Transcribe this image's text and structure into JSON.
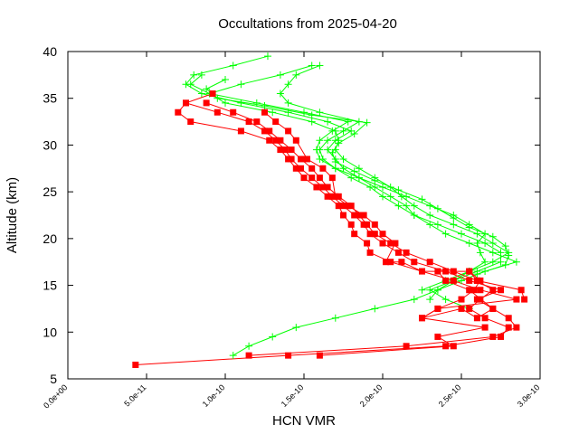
{
  "chart_data": {
    "type": "line",
    "title": "Occultations from 2025-04-20",
    "xlabel": "HCN VMR",
    "ylabel": "Altitude (km)",
    "xlim": [
      0,
      3e-10
    ],
    "ylim": [
      5,
      40
    ],
    "x_ticks": [
      "0.0e+00",
      "5.0e-11",
      "1.0e-10",
      "1.5e-10",
      "2.0e-10",
      "2.5e-10",
      "3.0e-10"
    ],
    "y_ticks": [
      "5",
      "10",
      "15",
      "20",
      "25",
      "30",
      "35",
      "40"
    ],
    "grid": false,
    "series": [
      {
        "color": "#00ff00",
        "marker": "plus",
        "points": [
          [
            1.27e-10,
            39.5
          ],
          [
            1.05e-10,
            38.5
          ],
          [
            8e-11,
            37.5
          ],
          [
            7.5e-11,
            36.5
          ],
          [
            8.5e-11,
            35.5
          ],
          [
            1.1e-10,
            34.5
          ],
          [
            1.4e-10,
            33.5
          ],
          [
            1.65e-10,
            32.5
          ],
          [
            1.8e-10,
            31.5
          ],
          [
            1.7e-10,
            30.5
          ],
          [
            1.65e-10,
            29.5
          ],
          [
            1.7e-10,
            28.5
          ],
          [
            1.75e-10,
            27.5
          ],
          [
            1.85e-10,
            26.5
          ],
          [
            1.95e-10,
            25.5
          ],
          [
            2.05e-10,
            24.5
          ],
          [
            2.15e-10,
            23.5
          ],
          [
            2.2e-10,
            22.5
          ],
          [
            2.3e-10,
            21.5
          ],
          [
            2.4e-10,
            20.5
          ],
          [
            2.55e-10,
            19.5
          ],
          [
            2.7e-10,
            18.5
          ],
          [
            2.85e-10,
            17.5
          ],
          [
            2.65e-10,
            16.5
          ],
          [
            2.5e-10,
            15.5
          ],
          [
            2.35e-10,
            14.5
          ],
          [
            2.2e-10,
            13.5
          ],
          [
            1.95e-10,
            12.5
          ],
          [
            1.7e-10,
            11.5
          ],
          [
            1.45e-10,
            10.5
          ],
          [
            1.3e-10,
            9.5
          ],
          [
            1.15e-10,
            8.5
          ],
          [
            1.05e-10,
            7.5
          ]
        ]
      },
      {
        "color": "#00ff00",
        "marker": "plus",
        "points": [
          [
            1.6e-10,
            38.5
          ],
          [
            1.45e-10,
            37.5
          ],
          [
            1.4e-10,
            36.5
          ],
          [
            1.35e-10,
            35.5
          ],
          [
            1.4e-10,
            34.5
          ],
          [
            1.6e-10,
            33.5
          ],
          [
            1.85e-10,
            32.5
          ],
          [
            1.75e-10,
            31.5
          ],
          [
            1.65e-10,
            30.5
          ],
          [
            1.6e-10,
            29.5
          ],
          [
            1.62e-10,
            28.5
          ],
          [
            1.7e-10,
            27.5
          ],
          [
            1.8e-10,
            26.5
          ],
          [
            1.92e-10,
            25.5
          ],
          [
            2e-10,
            24.5
          ],
          [
            2.1e-10,
            23.5
          ],
          [
            2.2e-10,
            22.5
          ],
          [
            2.35e-10,
            21.5
          ],
          [
            2.5e-10,
            20.5
          ],
          [
            2.65e-10,
            19.5
          ],
          [
            2.75e-10,
            18.5
          ],
          [
            2.75e-10,
            17.5
          ],
          [
            2.6e-10,
            16.5
          ],
          [
            2.45e-10,
            15.5
          ],
          [
            2.3e-10,
            14.5
          ],
          [
            2.4e-10,
            13.5
          ],
          [
            2.55e-10,
            12.5
          ]
        ]
      },
      {
        "color": "#00ff00",
        "marker": "plus",
        "points": [
          [
            1.55e-10,
            38.5
          ],
          [
            1.35e-10,
            37.5
          ],
          [
            1.1e-10,
            36.5
          ],
          [
            9e-11,
            35.5
          ],
          [
            1e-10,
            34.5
          ],
          [
            1.3e-10,
            33.5
          ],
          [
            1.55e-10,
            32.5
          ],
          [
            1.7e-10,
            31.5
          ],
          [
            1.72e-10,
            30.5
          ],
          [
            1.7e-10,
            29.5
          ],
          [
            1.75e-10,
            28.5
          ],
          [
            1.85e-10,
            27.5
          ],
          [
            1.95e-10,
            26.5
          ],
          [
            2.05e-10,
            25.5
          ],
          [
            2.12e-10,
            24.5
          ],
          [
            2.2e-10,
            23.5
          ],
          [
            2.3e-10,
            22.5
          ],
          [
            2.45e-10,
            21.5
          ],
          [
            2.6e-10,
            20.5
          ],
          [
            2.7e-10,
            19.5
          ],
          [
            2.8e-10,
            18.5
          ],
          [
            2.7e-10,
            17.5
          ],
          [
            2.55e-10,
            16.5
          ],
          [
            2.4e-10,
            15.5
          ],
          [
            2.25e-10,
            14.5
          ]
        ]
      },
      {
        "color": "#00ff00",
        "marker": "plus",
        "points": [
          [
            8.5e-11,
            37.5
          ],
          [
            7.8e-11,
            36.5
          ],
          [
            9e-11,
            35.5
          ],
          [
            1.2e-10,
            34.5
          ],
          [
            1.5e-10,
            33.5
          ],
          [
            1.78e-10,
            32.5
          ],
          [
            1.68e-10,
            31.5
          ],
          [
            1.6e-10,
            30.5
          ],
          [
            1.58e-10,
            29.5
          ],
          [
            1.6e-10,
            28.5
          ],
          [
            1.7e-10,
            27.5
          ],
          [
            1.85e-10,
            26.5
          ],
          [
            2e-10,
            25.5
          ],
          [
            2.15e-10,
            24.5
          ],
          [
            2.3e-10,
            23.5
          ],
          [
            2.45e-10,
            22.5
          ],
          [
            2.55e-10,
            21.5
          ],
          [
            2.65e-10,
            20.5
          ],
          [
            2.6e-10,
            19.5
          ],
          [
            2.62e-10,
            18.5
          ],
          [
            2.65e-10,
            17.5
          ],
          [
            2.55e-10,
            16.5
          ],
          [
            2.45e-10,
            15.5
          ],
          [
            2.35e-10,
            14.5
          ],
          [
            2.3e-10,
            13.5
          ]
        ]
      },
      {
        "color": "#00ff00",
        "marker": "plus",
        "points": [
          [
            1e-10,
            37.0
          ],
          [
            8.8e-11,
            36.0
          ],
          [
            9.5e-11,
            35.0
          ],
          [
            1.25e-10,
            34.2
          ],
          [
            1.55e-10,
            33.2
          ],
          [
            1.9e-10,
            32.4
          ],
          [
            1.82e-10,
            31.2
          ],
          [
            1.72e-10,
            30.2
          ],
          [
            1.68e-10,
            29.2
          ],
          [
            1.7e-10,
            28.2
          ],
          [
            1.82e-10,
            27.2
          ],
          [
            1.95e-10,
            26.2
          ],
          [
            2.1e-10,
            25.2
          ],
          [
            2.25e-10,
            24.2
          ],
          [
            2.35e-10,
            23.2
          ],
          [
            2.45e-10,
            22.2
          ],
          [
            2.55e-10,
            21.2
          ],
          [
            2.7e-10,
            20.2
          ],
          [
            2.78e-10,
            19.2
          ],
          [
            2.8e-10,
            18.2
          ],
          [
            2.78e-10,
            17.2
          ],
          [
            2.6e-10,
            16.2
          ]
        ]
      },
      {
        "color": "#ff0000",
        "marker": "square",
        "points": [
          [
            4.3e-11,
            6.5
          ],
          [
            1.4e-10,
            7.5
          ],
          [
            2.4e-10,
            8.5
          ],
          [
            2.75e-10,
            9.5
          ],
          [
            2.8e-10,
            10.5
          ],
          [
            2.65e-10,
            11.5
          ],
          [
            2.55e-10,
            12.5
          ],
          [
            2.62e-10,
            13.5
          ],
          [
            2.7e-10,
            14.5
          ],
          [
            2.6e-10,
            15.5
          ],
          [
            2.45e-10,
            16.5
          ],
          [
            2.3e-10,
            17.5
          ],
          [
            2.15e-10,
            18.5
          ],
          [
            2.05e-10,
            19.5
          ],
          [
            1.95e-10,
            20.5
          ],
          [
            1.9e-10,
            21.5
          ],
          [
            1.85e-10,
            22.5
          ],
          [
            1.8e-10,
            23.5
          ],
          [
            1.72e-10,
            24.5
          ],
          [
            1.65e-10,
            25.5
          ],
          [
            1.6e-10,
            26.5
          ],
          [
            1.55e-10,
            27.5
          ],
          [
            1.48e-10,
            28.5
          ],
          [
            1.42e-10,
            29.5
          ],
          [
            1.35e-10,
            30.5
          ],
          [
            1.28e-10,
            31.5
          ],
          [
            1.2e-10,
            32.5
          ],
          [
            1.05e-10,
            33.5
          ],
          [
            8.8e-11,
            34.5
          ]
        ]
      },
      {
        "color": "#ff0000",
        "marker": "square",
        "points": [
          [
            1.15e-10,
            7.5
          ],
          [
            2.15e-10,
            8.5
          ],
          [
            2.7e-10,
            9.5
          ],
          [
            2.85e-10,
            10.5
          ],
          [
            2.8e-10,
            11.5
          ],
          [
            2.7e-10,
            12.5
          ],
          [
            2.6e-10,
            13.5
          ],
          [
            2.75e-10,
            14.5
          ],
          [
            2.55e-10,
            15.5
          ],
          [
            2.4e-10,
            16.5
          ],
          [
            2.2e-10,
            17.5
          ],
          [
            2.1e-10,
            18.5
          ],
          [
            2e-10,
            19.5
          ],
          [
            1.92e-10,
            20.5
          ],
          [
            1.88e-10,
            21.5
          ],
          [
            1.82e-10,
            22.5
          ],
          [
            1.75e-10,
            23.5
          ],
          [
            1.68e-10,
            24.5
          ],
          [
            1.62e-10,
            25.5
          ],
          [
            1.55e-10,
            26.5
          ],
          [
            1.48e-10,
            27.5
          ],
          [
            1.42e-10,
            28.5
          ],
          [
            1.38e-10,
            29.5
          ],
          [
            1.32e-10,
            30.5
          ],
          [
            1.25e-10,
            31.5
          ],
          [
            1.15e-10,
            32.5
          ],
          [
            9.5e-11,
            33.5
          ],
          [
            7.5e-11,
            34.5
          ]
        ]
      },
      {
        "color": "#ff0000",
        "marker": "square",
        "points": [
          [
            1.6e-10,
            7.5
          ],
          [
            2.45e-10,
            8.5
          ],
          [
            2.35e-10,
            9.5
          ],
          [
            2.65e-10,
            10.5
          ],
          [
            2.25e-10,
            11.5
          ],
          [
            2.35e-10,
            12.5
          ],
          [
            2.85e-10,
            13.5
          ],
          [
            2.62e-10,
            14.5
          ],
          [
            2.45e-10,
            15.5
          ],
          [
            2.25e-10,
            16.5
          ],
          [
            2.05e-10,
            17.5
          ],
          [
            1.92e-10,
            18.5
          ],
          [
            1.9e-10,
            19.5
          ],
          [
            1.82e-10,
            20.5
          ],
          [
            1.8e-10,
            21.5
          ],
          [
            1.75e-10,
            22.5
          ],
          [
            1.72e-10,
            23.5
          ],
          [
            1.65e-10,
            24.5
          ],
          [
            1.58e-10,
            25.5
          ],
          [
            1.5e-10,
            26.5
          ],
          [
            1.45e-10,
            27.5
          ],
          [
            1.4e-10,
            28.5
          ],
          [
            1.35e-10,
            29.5
          ],
          [
            1.28e-10,
            30.5
          ],
          [
            1.1e-10,
            31.5
          ],
          [
            7.8e-11,
            32.5
          ],
          [
            7e-11,
            33.5
          ],
          [
            7.5e-11,
            34.5
          ],
          [
            9.2e-11,
            35.5
          ]
        ]
      },
      {
        "color": "#ff0000",
        "marker": "square",
        "points": [
          [
            2.9e-10,
            13.5
          ],
          [
            2.88e-10,
            14.5
          ],
          [
            2.6e-10,
            15.5
          ],
          [
            2.55e-10,
            16.5
          ],
          [
            2.25e-10,
            16.5
          ],
          [
            2.12e-10,
            17.5
          ],
          [
            2.02e-10,
            17.5
          ],
          [
            2.08e-10,
            19.5
          ],
          [
            2e-10,
            20.5
          ],
          [
            1.95e-10,
            21.5
          ],
          [
            1.88e-10,
            22.5
          ],
          [
            1.78e-10,
            23.5
          ],
          [
            1.7e-10,
            24.5
          ],
          [
            1.68e-10,
            26.5
          ],
          [
            1.62e-10,
            27.5
          ],
          [
            1.52e-10,
            28.5
          ],
          [
            1.45e-10,
            30.5
          ],
          [
            1.4e-10,
            31.5
          ],
          [
            1.32e-10,
            32.5
          ],
          [
            1.25e-10,
            33.5
          ]
        ]
      },
      {
        "color": "#ff0000",
        "marker": "square",
        "points": [
          [
            2.55e-10,
            16.5
          ],
          [
            2.62e-10,
            15.5
          ],
          [
            2.58e-10,
            14.5
          ],
          [
            2.5e-10,
            13.5
          ],
          [
            2.35e-10,
            12.5
          ],
          [
            2.25e-10,
            11.5
          ],
          [
            2.5e-10,
            12.5
          ],
          [
            2.6e-10,
            11.5
          ],
          [
            2.7e-10,
            12.5
          ],
          [
            2.55e-10,
            14.5
          ],
          [
            2.4e-10,
            15.5
          ],
          [
            2.35e-10,
            16.5
          ]
        ]
      }
    ]
  }
}
